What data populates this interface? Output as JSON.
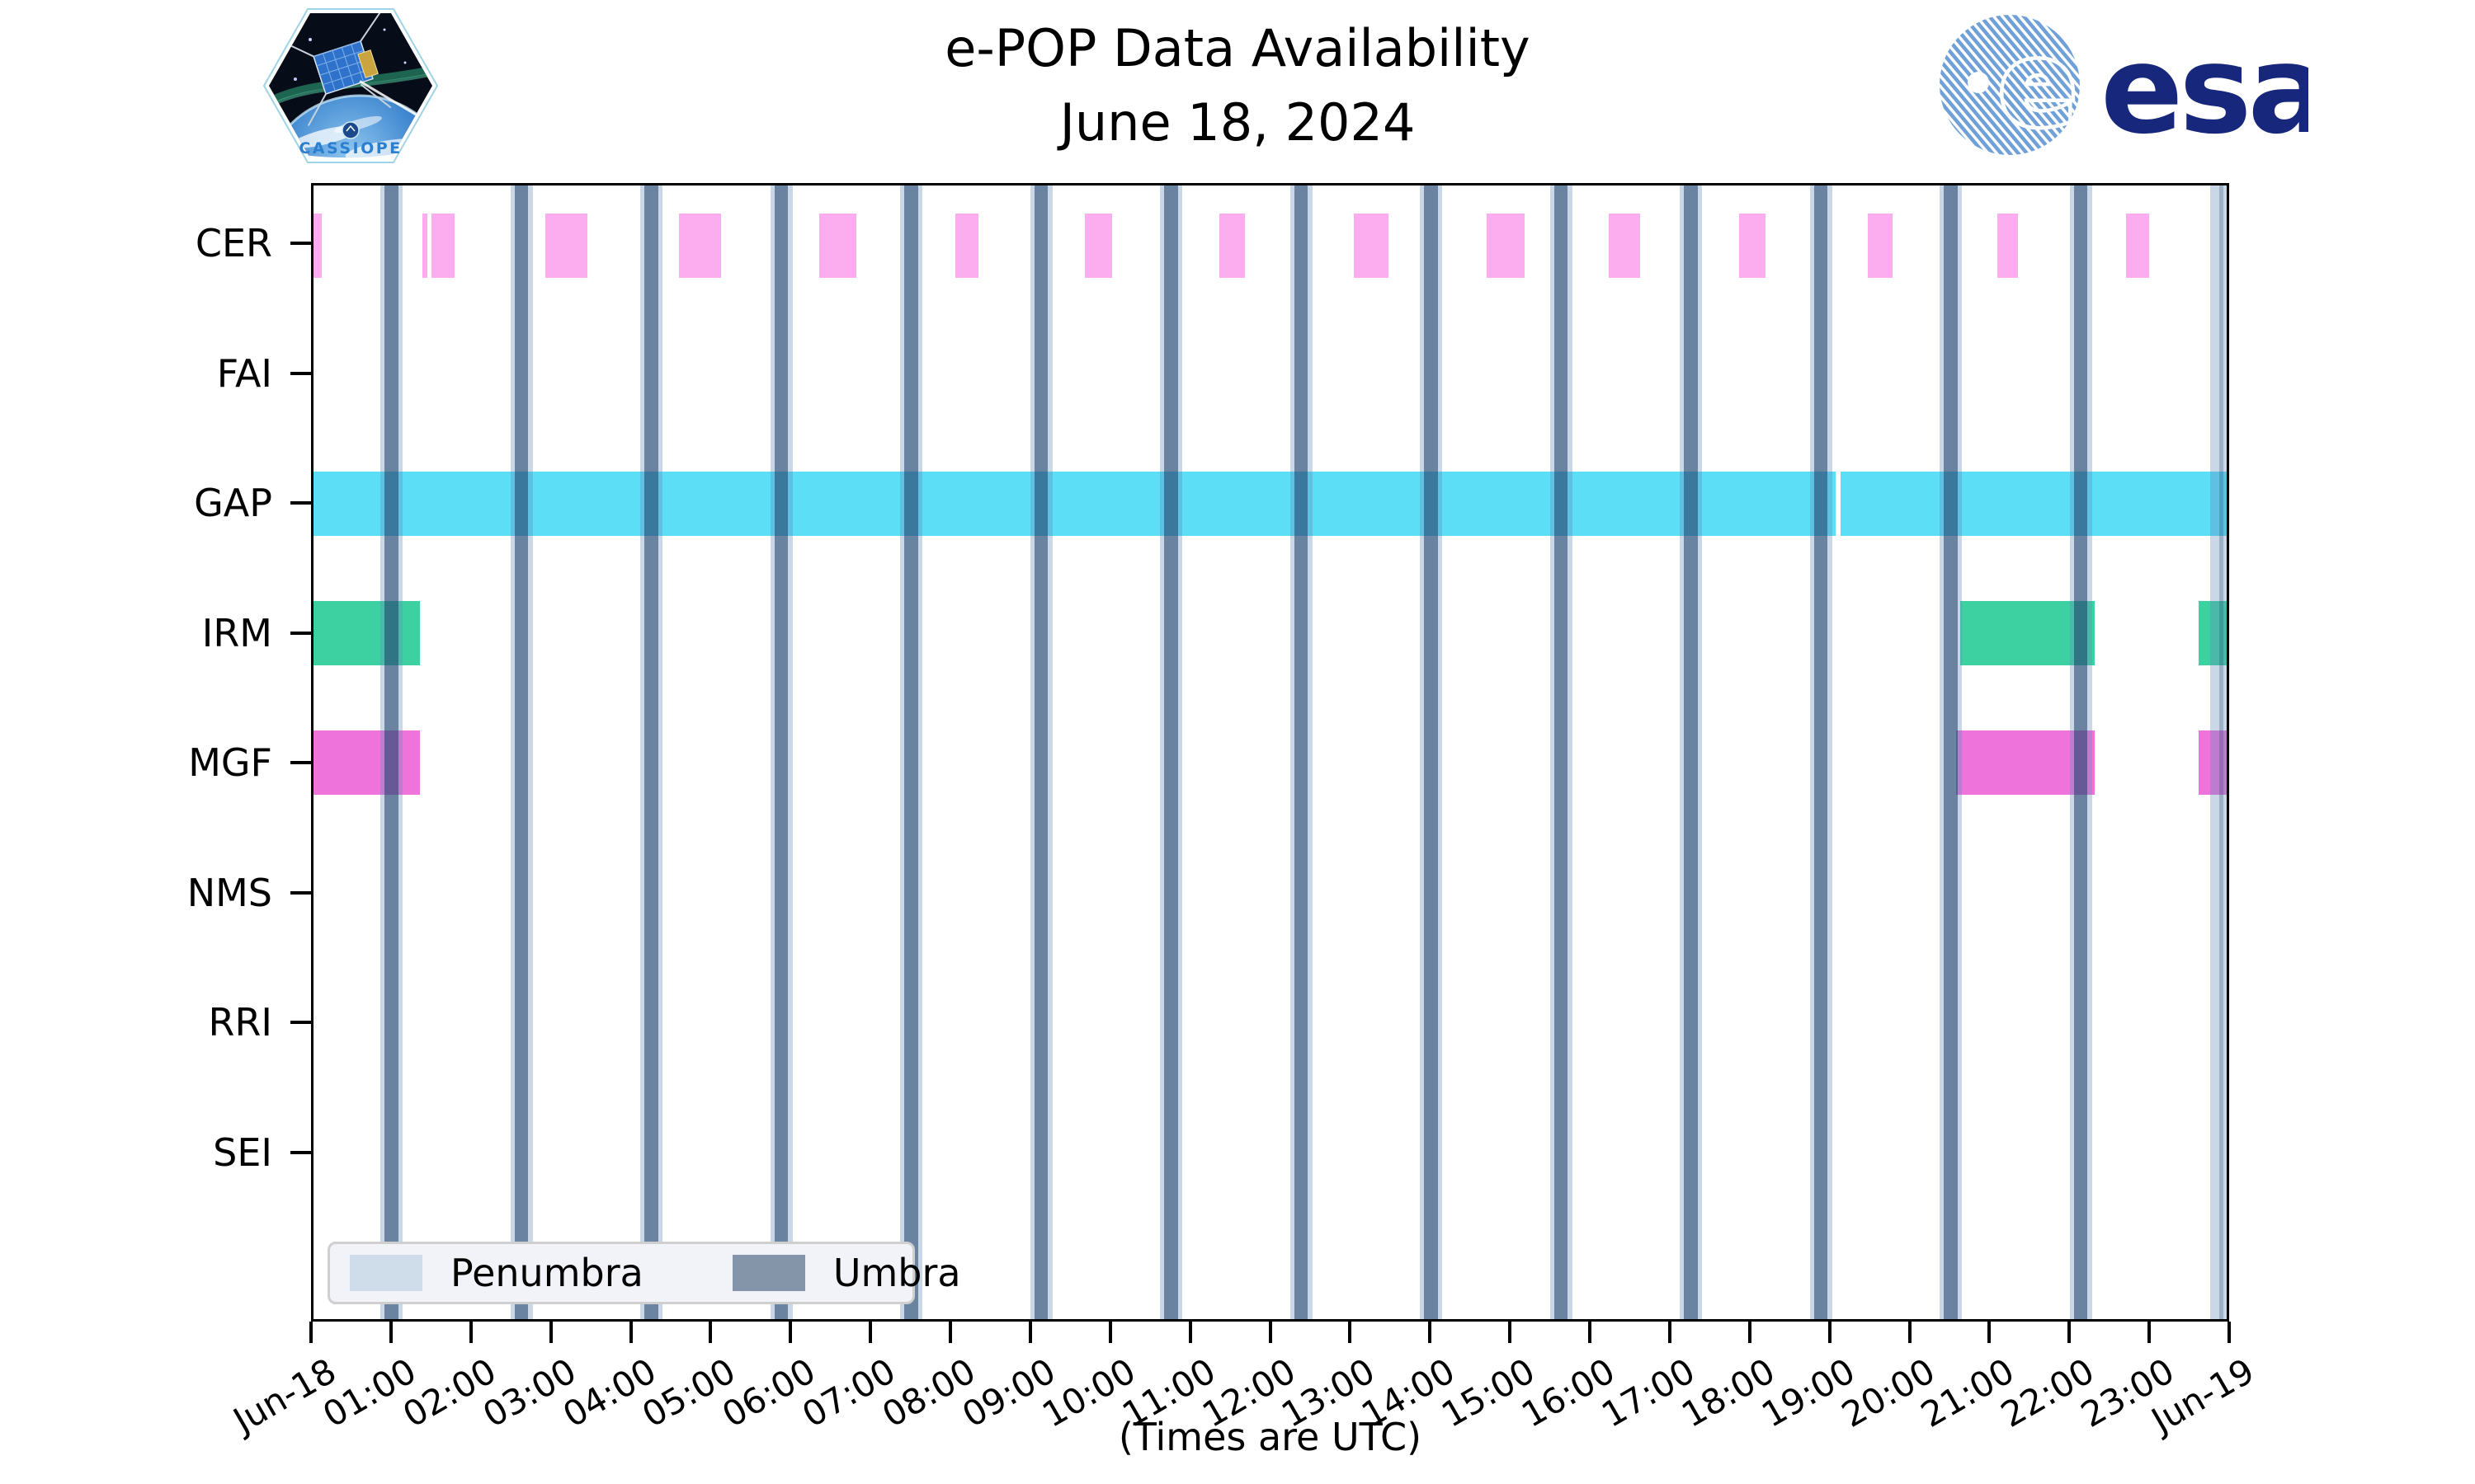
{
  "header": {
    "title": "e-POP Data Availability",
    "subtitle": "June 18, 2024"
  },
  "logos": {
    "mission_label": "CASSIOPE",
    "esa_label": "esa"
  },
  "footer": "(Times are UTC)",
  "legend": {
    "penumbra_label": "Penumbra",
    "umbra_label": "Umbra",
    "penumbra_color": "#cfdcea",
    "umbra_color": "#8495aa"
  },
  "chart_data": {
    "type": "bar",
    "subtype": "broken-bar availability timeline (Gantt)",
    "title": "e-POP Data Availability",
    "subtitle": "June 18, 2024",
    "xlabel": "(Times are UTC)",
    "x_range_hours": [
      0,
      24
    ],
    "x_tick_hours": [
      0,
      1,
      2,
      3,
      4,
      5,
      6,
      7,
      8,
      9,
      10,
      11,
      12,
      13,
      14,
      15,
      16,
      17,
      18,
      19,
      20,
      21,
      22,
      23,
      24
    ],
    "x_tick_labels": [
      "Jun-18",
      "01:00",
      "02:00",
      "03:00",
      "04:00",
      "05:00",
      "06:00",
      "07:00",
      "08:00",
      "09:00",
      "10:00",
      "11:00",
      "12:00",
      "13:00",
      "14:00",
      "15:00",
      "16:00",
      "17:00",
      "18:00",
      "19:00",
      "20:00",
      "21:00",
      "22:00",
      "23:00",
      "Jun-19"
    ],
    "categories": [
      "CER",
      "FAI",
      "GAP",
      "IRM",
      "MGF",
      "NMS",
      "RRI",
      "SEI"
    ],
    "series": [
      {
        "name": "CER",
        "color": "#fbadf0",
        "intervals_hours": [
          [
            0.0,
            0.1
          ],
          [
            1.37,
            1.43
          ],
          [
            1.48,
            1.77
          ],
          [
            2.91,
            3.44
          ],
          [
            4.58,
            5.11
          ],
          [
            6.34,
            6.81
          ],
          [
            8.05,
            8.34
          ],
          [
            9.68,
            10.02
          ],
          [
            11.36,
            11.68
          ],
          [
            13.05,
            13.48
          ],
          [
            14.72,
            15.19
          ],
          [
            16.25,
            16.64
          ],
          [
            17.88,
            18.22
          ],
          [
            19.5,
            19.81
          ],
          [
            21.12,
            21.38
          ],
          [
            22.74,
            23.03
          ]
        ]
      },
      {
        "name": "FAI",
        "color": null,
        "intervals_hours": []
      },
      {
        "name": "GAP",
        "color": "#5cdef7",
        "intervals_hours": [
          [
            0.0,
            19.09
          ],
          [
            19.16,
            24.0
          ]
        ]
      },
      {
        "name": "IRM",
        "color": "#3dd1a2",
        "intervals_hours": [
          [
            0.0,
            1.33
          ],
          [
            20.66,
            22.34
          ],
          [
            23.65,
            24.0
          ]
        ]
      },
      {
        "name": "MGF",
        "color": "#ee74dc",
        "intervals_hours": [
          [
            0.0,
            1.34
          ],
          [
            20.61,
            22.34
          ],
          [
            23.65,
            24.0
          ]
        ]
      },
      {
        "name": "NMS",
        "color": null,
        "intervals_hours": []
      },
      {
        "name": "RRI",
        "color": null,
        "intervals_hours": []
      },
      {
        "name": "SEI",
        "color": null,
        "intervals_hours": []
      }
    ],
    "eclipse_bands": {
      "umbra_centers_hours": [
        0.98,
        2.61,
        4.24,
        5.87,
        7.5,
        9.13,
        10.76,
        12.39,
        14.02,
        15.65,
        17.28,
        18.91,
        20.54,
        22.17
      ],
      "penumbra_only_centers_hours": [
        23.93
      ],
      "umbra_width_hours": 0.17,
      "penumbra_width_hours": 0.28,
      "umbra_color_rgba": "rgba(28,62,102,0.55)",
      "penumbra_color_rgba": "rgba(101,141,184,0.35)",
      "umbra_legend_color": "#8495aa",
      "penumbra_legend_color": "#cfdcea"
    },
    "legend_entries": [
      "Penumbra",
      "Umbra"
    ],
    "legend_position": "lower left",
    "grid": false
  }
}
